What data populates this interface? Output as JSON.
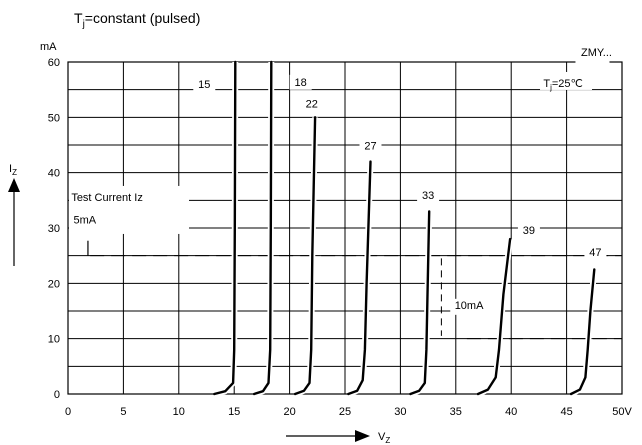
{
  "chart_data": {
    "type": "line",
    "title_main": "T",
    "title_sub": "j",
    "title_rest": "=constant (pulsed)",
    "part_label": "ZMY...",
    "temp_main": "T",
    "temp_sub": "j",
    "temp_rest": "=25℃",
    "y_unit": "mA",
    "x_unit": "V",
    "xlim": [
      0,
      50
    ],
    "ylim": [
      0,
      60
    ],
    "x_ticks": [
      0,
      5,
      10,
      15,
      20,
      25,
      30,
      35,
      40,
      45,
      50
    ],
    "x_tick_labels": [
      "0",
      "5",
      "10",
      "15",
      "20",
      "25",
      "30",
      "35",
      "40",
      "45",
      "50V"
    ],
    "y_ticks": [
      0,
      10,
      20,
      30,
      40,
      50,
      60
    ],
    "y_tick_labels": [
      "0",
      "10",
      "20",
      "30",
      "40",
      "50",
      "60"
    ],
    "grid": true,
    "y_axis_label_main": "I",
    "y_axis_label_sub": "Z",
    "x_axis_label_main": "V",
    "x_axis_label_sub": "Z",
    "annotation_test_current": "Test Current Iz",
    "annotation_5ma": "5mA",
    "annotation_10ma": "10mA",
    "series": [
      {
        "name": "15",
        "points": [
          [
            13.2,
            0
          ],
          [
            14.2,
            0.5
          ],
          [
            14.9,
            2
          ],
          [
            15.0,
            8
          ],
          [
            15.05,
            30
          ],
          [
            15.1,
            60
          ]
        ]
      },
      {
        "name": "18",
        "points": [
          [
            16.8,
            0
          ],
          [
            17.6,
            0.5
          ],
          [
            18.1,
            2
          ],
          [
            18.25,
            8
          ],
          [
            18.3,
            30
          ],
          [
            18.35,
            60
          ]
        ]
      },
      {
        "name": "22",
        "points": [
          [
            20.5,
            0
          ],
          [
            21.3,
            0.6
          ],
          [
            21.8,
            2
          ],
          [
            21.95,
            8
          ],
          [
            22.05,
            25
          ],
          [
            22.3,
            50
          ]
        ]
      },
      {
        "name": "27",
        "points": [
          [
            25.3,
            0
          ],
          [
            26.1,
            0.6
          ],
          [
            26.6,
            2.5
          ],
          [
            26.8,
            8
          ],
          [
            26.95,
            20
          ],
          [
            27.3,
            42
          ]
        ]
      },
      {
        "name": "33",
        "points": [
          [
            30.9,
            0
          ],
          [
            31.7,
            0.6
          ],
          [
            32.2,
            2
          ],
          [
            32.35,
            8
          ],
          [
            32.45,
            18
          ],
          [
            32.6,
            33
          ]
        ]
      },
      {
        "name": "39",
        "points": [
          [
            37.0,
            0
          ],
          [
            37.9,
            0.8
          ],
          [
            38.6,
            3
          ],
          [
            38.9,
            8
          ],
          [
            39.3,
            18
          ],
          [
            39.9,
            28
          ]
        ]
      },
      {
        "name": "47",
        "points": [
          [
            45.4,
            0
          ],
          [
            46.2,
            0.8
          ],
          [
            46.7,
            3
          ],
          [
            46.9,
            8
          ],
          [
            47.15,
            15
          ],
          [
            47.5,
            22.5
          ]
        ]
      }
    ],
    "reference_lines": {
      "test_current_level": 25,
      "dashed_level_2": 10
    },
    "test_current_marker_x": 1.8,
    "span_10ma_x": 33.7
  }
}
